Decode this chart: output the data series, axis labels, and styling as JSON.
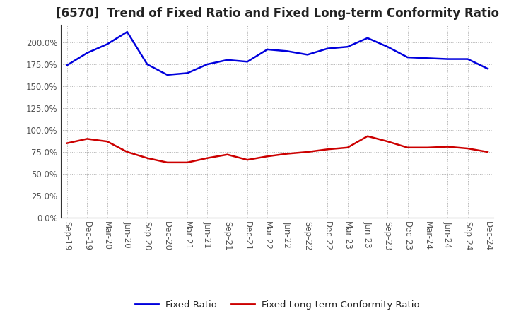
{
  "title": "[6570]  Trend of Fixed Ratio and Fixed Long-term Conformity Ratio",
  "x_labels": [
    "Sep-19",
    "Dec-19",
    "Mar-20",
    "Jun-20",
    "Sep-20",
    "Dec-20",
    "Mar-21",
    "Jun-21",
    "Sep-21",
    "Dec-21",
    "Mar-22",
    "Jun-22",
    "Sep-22",
    "Dec-22",
    "Mar-23",
    "Jun-23",
    "Sep-23",
    "Dec-23",
    "Mar-24",
    "Jun-24",
    "Sep-24",
    "Dec-24"
  ],
  "fixed_ratio": [
    174.0,
    188.0,
    198.0,
    212.0,
    175.0,
    163.0,
    165.0,
    175.0,
    180.0,
    178.0,
    192.0,
    190.0,
    186.0,
    193.0,
    195.0,
    205.0,
    195.0,
    183.0,
    182.0,
    181.0,
    181.0,
    170.0
  ],
  "fixed_lt_ratio": [
    85.0,
    90.0,
    87.0,
    75.0,
    68.0,
    63.0,
    63.0,
    68.0,
    72.0,
    66.0,
    70.0,
    73.0,
    75.0,
    78.0,
    80.0,
    93.0,
    87.0,
    80.0,
    80.0,
    81.0,
    79.0,
    75.0
  ],
  "fixed_ratio_color": "#0000dd",
  "fixed_lt_ratio_color": "#cc0000",
  "line_width": 1.8,
  "background_color": "#ffffff",
  "plot_bg_color": "#ffffff",
  "grid_color": "#aaaaaa",
  "ylim": [
    0,
    220
  ],
  "yticks": [
    0.0,
    25.0,
    50.0,
    75.0,
    100.0,
    125.0,
    150.0,
    175.0,
    200.0
  ],
  "legend_fixed_ratio": "Fixed Ratio",
  "legend_fixed_lt": "Fixed Long-term Conformity Ratio",
  "title_fontsize": 12,
  "tick_fontsize": 8.5,
  "legend_fontsize": 9.5,
  "label_color": "#555555"
}
